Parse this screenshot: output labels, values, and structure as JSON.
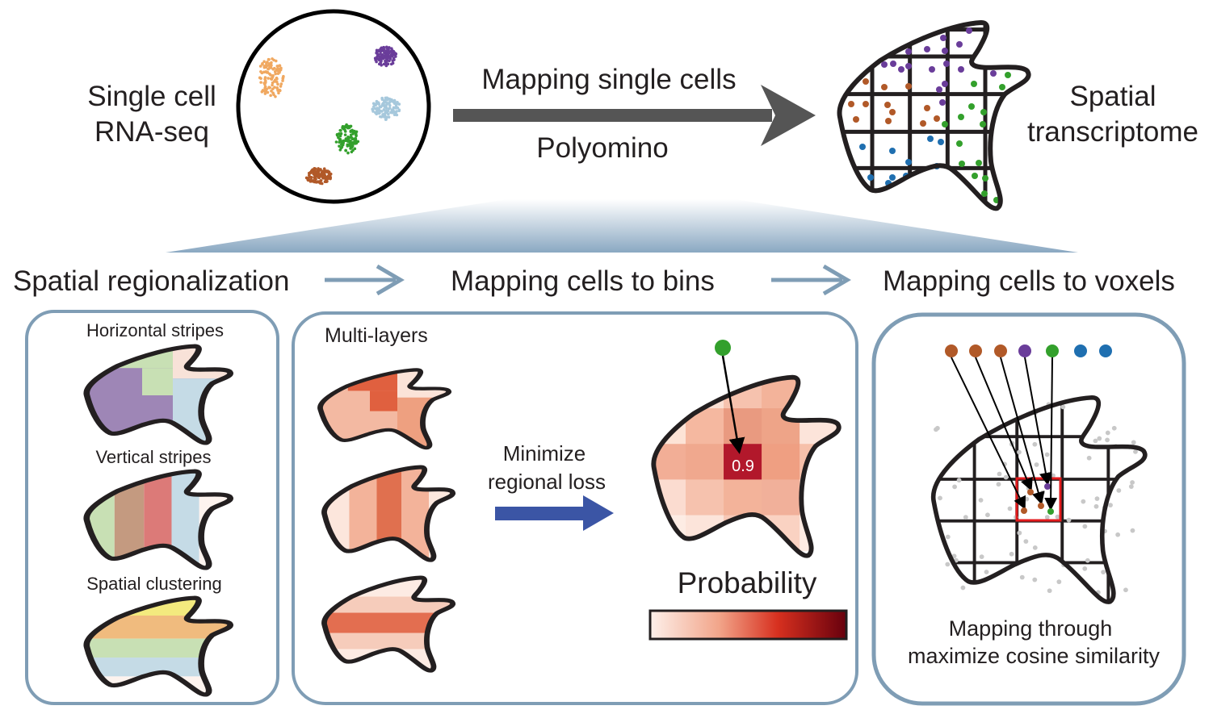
{
  "top": {
    "left_label_line1": "Single cell",
    "left_label_line2": "RNA-seq",
    "arrow_top_label": "Mapping single cells",
    "arrow_bottom_label": "Polyomino",
    "right_label_line1": "Spatial",
    "right_label_line2": "transcriptome"
  },
  "steps": {
    "step1": "Spatial regionalization",
    "step2": "Mapping cells to bins",
    "step3": "Mapping cells to voxels"
  },
  "panel1": {
    "label1": "Horizontal stripes",
    "label2": "Vertical stripes",
    "label3": "Spatial clustering"
  },
  "panel2": {
    "label": "Multi-layers",
    "arrow_line1": "Minimize",
    "arrow_line2": "regional loss",
    "cell_value": "0.9",
    "colorbar_title": "Probability"
  },
  "panel3": {
    "caption_line1": "Mapping through",
    "caption_line2": "maximize cosine similarity"
  },
  "colors": {
    "orange": "#f0a860",
    "purple": "#6a3d9a",
    "lightblue": "#a6c8dc",
    "green": "#33a02c",
    "brown": "#b15928",
    "blue": "#1f6fb0",
    "panel_border": "#7f9db5",
    "blue_arrow": "#3b55a5",
    "dark_red": "#b2182b",
    "highlight": "#e31a1c"
  }
}
